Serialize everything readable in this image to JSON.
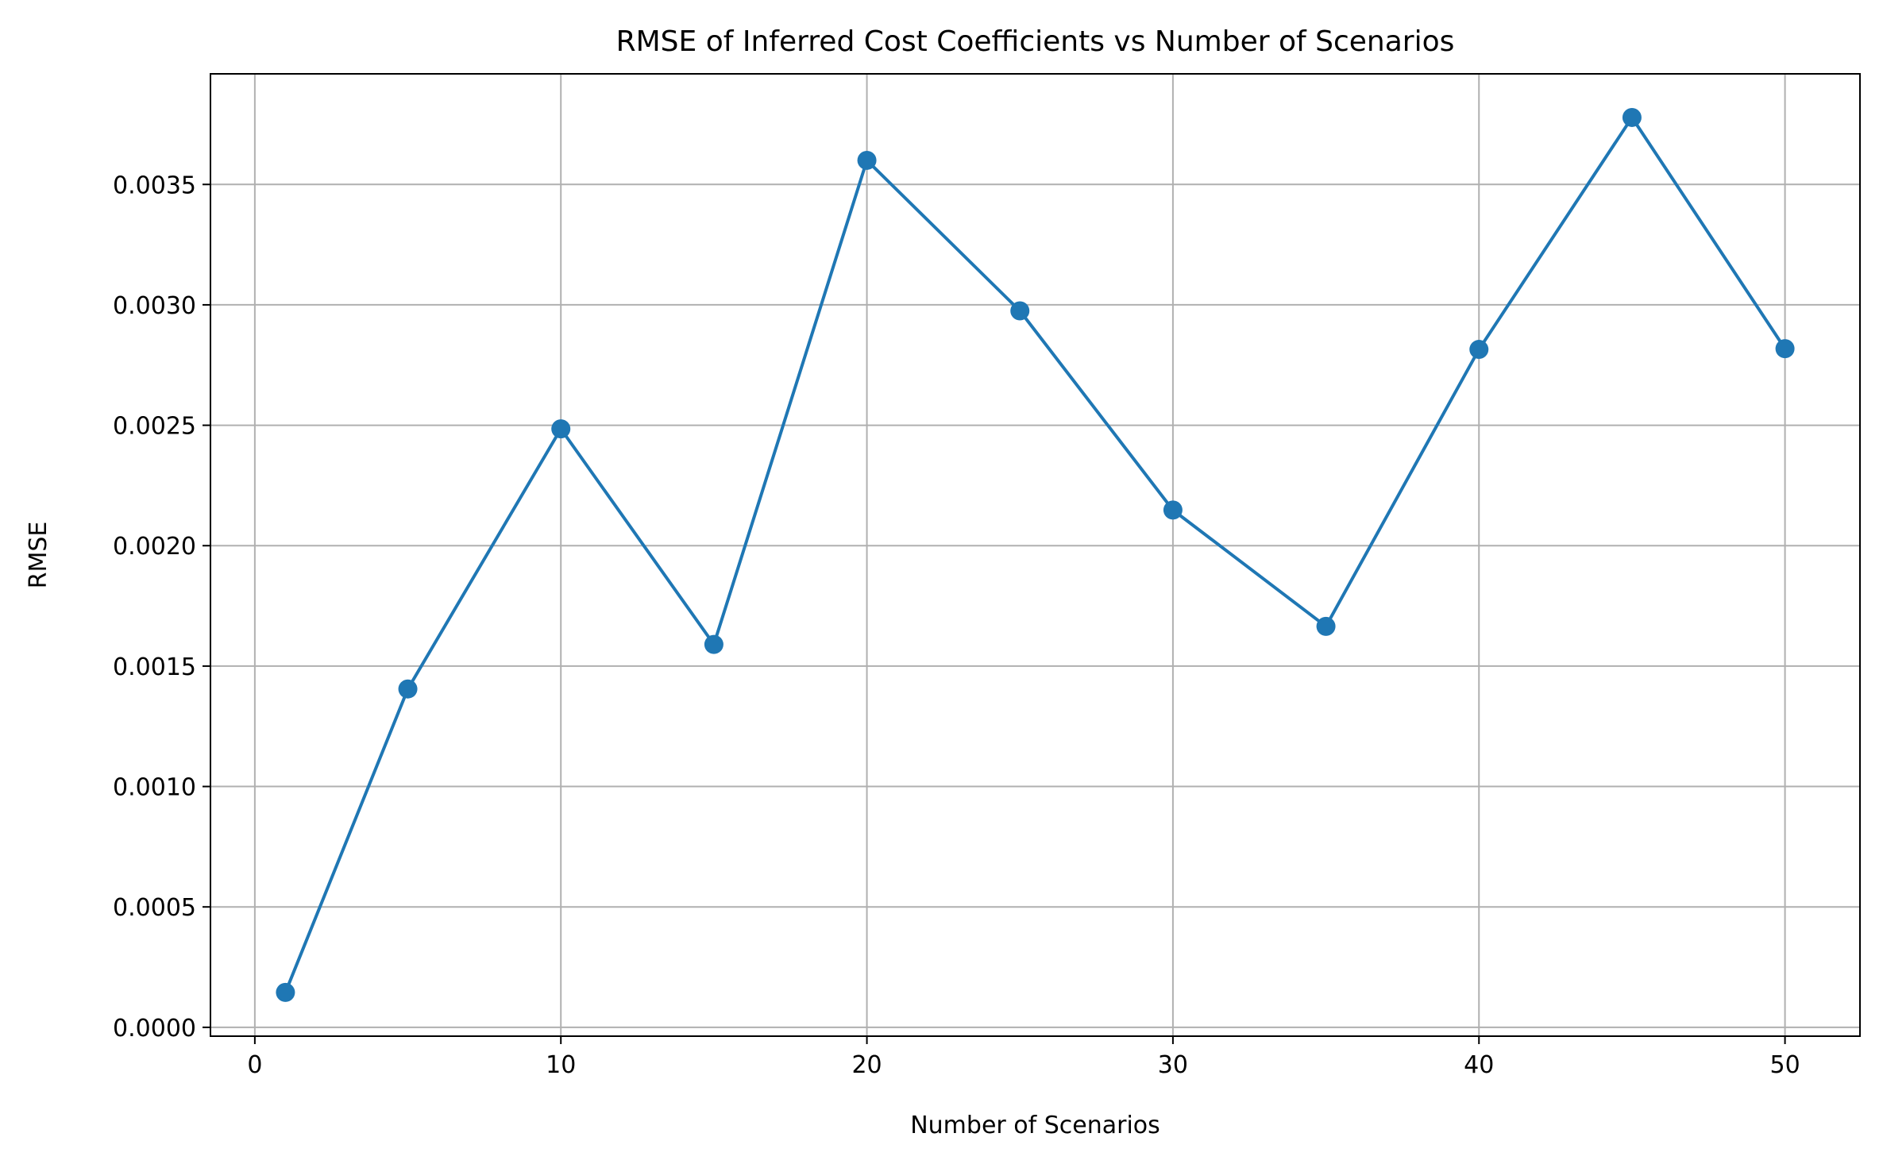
{
  "chart_data": {
    "type": "line",
    "title": "RMSE of Inferred Cost Coefficients vs Number of Scenarios",
    "xlabel": "Number of Scenarios",
    "ylabel": "RMSE",
    "x": [
      1,
      5,
      10,
      15,
      20,
      25,
      30,
      35,
      40,
      45,
      50
    ],
    "series": [
      {
        "values": [
          0.000145,
          0.001405,
          0.002485,
          0.00159,
          0.0036,
          0.002975,
          0.002148,
          0.001665,
          0.002815,
          0.003778,
          0.002818
        ],
        "color": "#1f77b4",
        "marker": "circle"
      }
    ],
    "xlim": [
      -1.45,
      52.45
    ],
    "ylim": [
      -3.67e-05,
      0.0039592
    ],
    "xticks": [
      0,
      10,
      20,
      30,
      40,
      50
    ],
    "xtick_labels": [
      "0",
      "10",
      "20",
      "30",
      "40",
      "50"
    ],
    "yticks": [
      0,
      0.0005,
      0.001,
      0.0015,
      0.002,
      0.0025,
      0.003,
      0.0035
    ],
    "ytick_labels": [
      "0.0000",
      "0.0005",
      "0.0010",
      "0.0015",
      "0.0020",
      "0.0025",
      "0.0030",
      "0.0035"
    ],
    "grid": true,
    "legend": "none"
  }
}
